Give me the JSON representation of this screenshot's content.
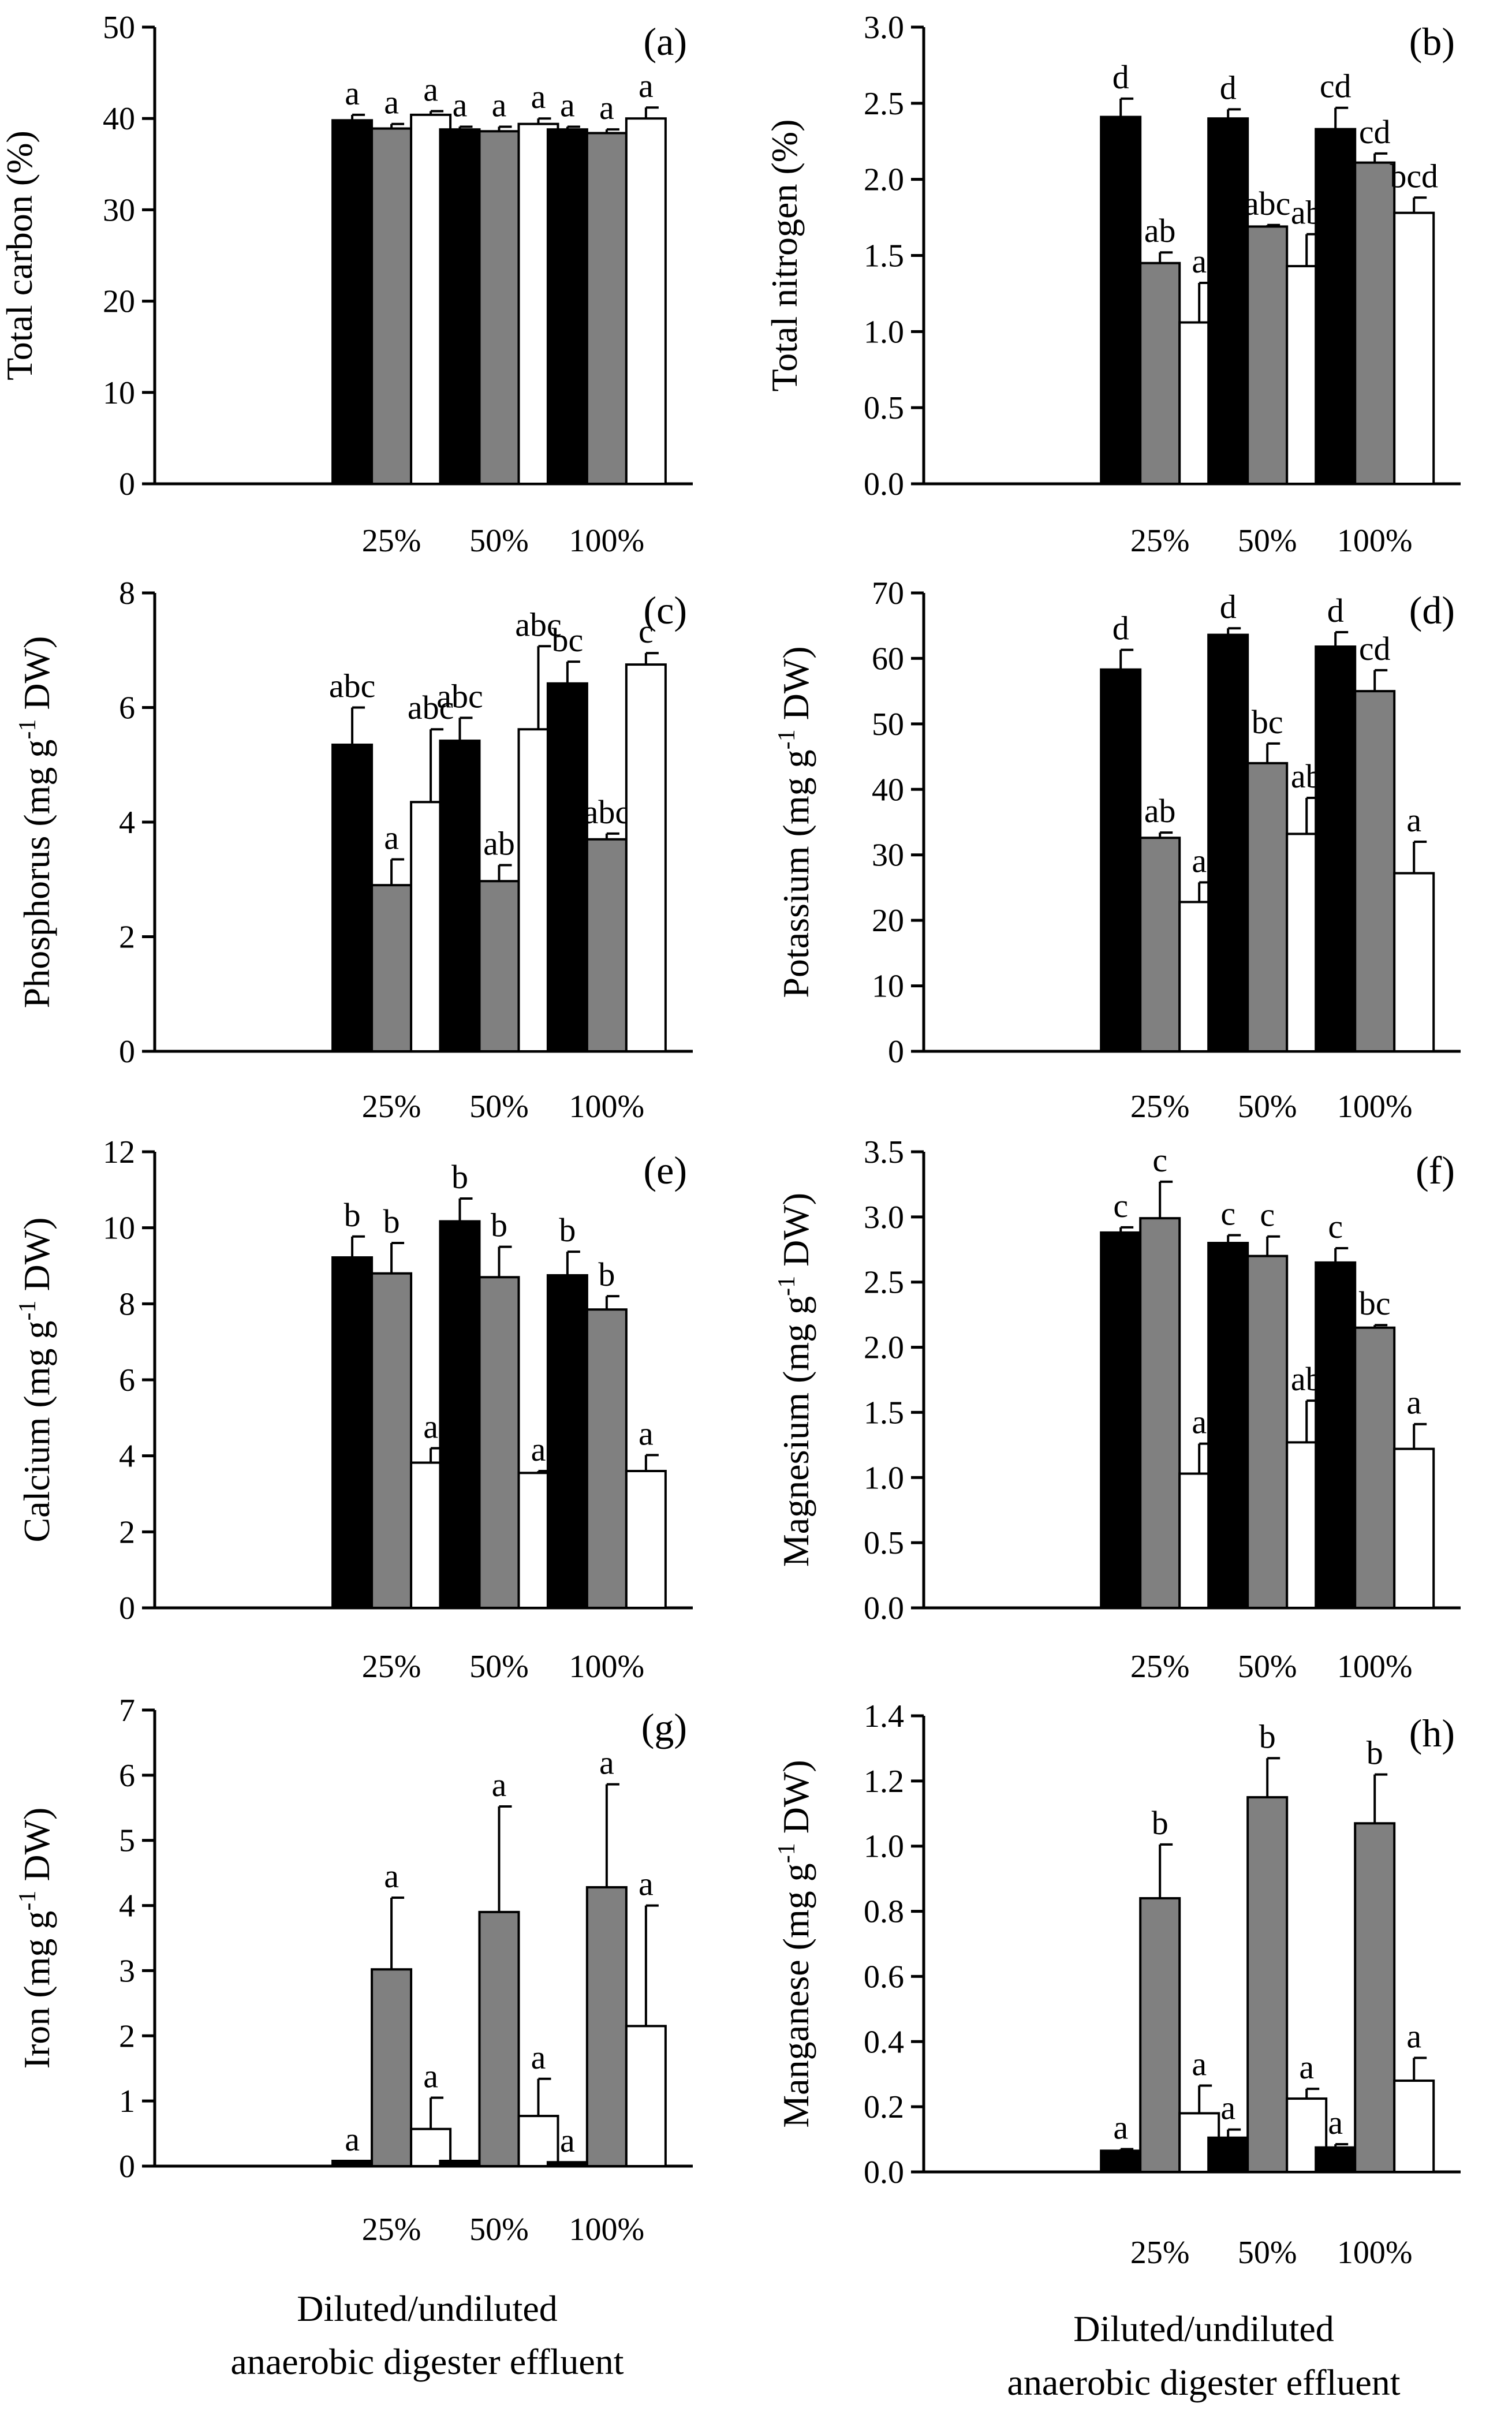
{
  "chart_data": [
    {
      "type": "bar",
      "panel": "(a)",
      "ylabel": "Total carbon (%)",
      "sup": "",
      "ylabel_after": "",
      "ylim": [
        0,
        50
      ],
      "yticks": [
        0,
        10,
        20,
        30,
        40,
        50
      ],
      "ytick_labels": [
        "0",
        "10",
        "20",
        "30",
        "40",
        "50"
      ],
      "categories": [
        "25%",
        "50%",
        "100%"
      ],
      "series": [
        {
          "color": "#000000",
          "values": [
            39.8,
            38.8,
            38.8
          ],
          "errors": [
            0.6,
            0.3,
            0.3
          ],
          "letters": [
            "a",
            "a",
            "a"
          ]
        },
        {
          "color": "#808080",
          "values": [
            38.9,
            38.6,
            38.4
          ],
          "errors": [
            0.5,
            0.5,
            0.4
          ],
          "letters": [
            "a",
            "a",
            "a"
          ]
        },
        {
          "color": "#ffffff",
          "values": [
            40.4,
            39.4,
            40.0
          ],
          "errors": [
            0.4,
            0.6,
            1.2
          ],
          "letters": [
            "a",
            "a",
            "a"
          ]
        }
      ]
    },
    {
      "type": "bar",
      "panel": "(b)",
      "ylabel": "Total nitrogen (%)",
      "sup": "",
      "ylabel_after": "",
      "ylim": [
        0,
        3.0
      ],
      "yticks": [
        0,
        0.5,
        1.0,
        1.5,
        2.0,
        2.5,
        3.0
      ],
      "ytick_labels": [
        "0.0",
        "0.5",
        "1.0",
        "1.5",
        "2.0",
        "2.5",
        "3.0"
      ],
      "categories": [
        "25%",
        "50%",
        "100%"
      ],
      "series": [
        {
          "color": "#000000",
          "values": [
            2.41,
            2.4,
            2.33
          ],
          "errors": [
            0.12,
            0.06,
            0.14
          ],
          "letters": [
            "d",
            "d",
            "cd"
          ]
        },
        {
          "color": "#808080",
          "values": [
            1.45,
            1.69,
            2.11
          ],
          "errors": [
            0.07,
            0.01,
            0.06
          ],
          "letters": [
            "ab",
            "abc",
            "cd"
          ]
        },
        {
          "color": "#ffffff",
          "values": [
            1.06,
            1.43,
            1.78
          ],
          "errors": [
            0.26,
            0.21,
            0.1
          ],
          "letters": [
            "a",
            "ab",
            "bcd"
          ]
        }
      ]
    },
    {
      "type": "bar",
      "panel": "(c)",
      "ylabel": "Phosphorus (mg g",
      "sup": "-1",
      "ylabel_after": " DW)",
      "ylim": [
        0,
        8
      ],
      "yticks": [
        0,
        2,
        4,
        6,
        8
      ],
      "ytick_labels": [
        "0",
        "2",
        "4",
        "6",
        "8"
      ],
      "categories": [
        "25%",
        "50%",
        "100%"
      ],
      "series": [
        {
          "color": "#000000",
          "values": [
            5.35,
            5.42,
            6.42
          ],
          "errors": [
            0.65,
            0.4,
            0.38
          ],
          "letters": [
            "abc",
            "abc",
            "bc"
          ]
        },
        {
          "color": "#808080",
          "values": [
            2.9,
            2.97,
            3.7
          ],
          "errors": [
            0.45,
            0.28,
            0.1
          ],
          "letters": [
            "a",
            "ab",
            "abc"
          ]
        },
        {
          "color": "#ffffff",
          "values": [
            4.35,
            5.62,
            6.75
          ],
          "errors": [
            1.27,
            1.45,
            0.2
          ],
          "letters": [
            "abc",
            "abc",
            "c"
          ]
        }
      ]
    },
    {
      "type": "bar",
      "panel": "(d)",
      "ylabel": "Potassium (mg g",
      "sup": "-1",
      "ylabel_after": " DW)",
      "ylim": [
        0,
        70
      ],
      "yticks": [
        0,
        10,
        20,
        30,
        40,
        50,
        60,
        70
      ],
      "ytick_labels": [
        "0",
        "10",
        "20",
        "30",
        "40",
        "50",
        "60",
        "70"
      ],
      "categories": [
        "25%",
        "50%",
        "100%"
      ],
      "series": [
        {
          "color": "#000000",
          "values": [
            58.3,
            63.6,
            61.8
          ],
          "errors": [
            3.0,
            1.0,
            2.2
          ],
          "letters": [
            "d",
            "d",
            "d"
          ]
        },
        {
          "color": "#808080",
          "values": [
            32.6,
            44.0,
            55.0
          ],
          "errors": [
            0.8,
            3.0,
            3.2
          ],
          "letters": [
            "ab",
            "bc",
            "cd"
          ]
        },
        {
          "color": "#ffffff",
          "values": [
            22.8,
            33.2,
            27.2
          ],
          "errors": [
            3.0,
            5.5,
            4.8
          ],
          "letters": [
            "a",
            "ab",
            "a"
          ]
        }
      ]
    },
    {
      "type": "bar",
      "panel": "(e)",
      "ylabel": "Calcium (mg g",
      "sup": "-1",
      "ylabel_after": " DW)",
      "ylim": [
        0,
        12
      ],
      "yticks": [
        0,
        2,
        4,
        6,
        8,
        10,
        12
      ],
      "ytick_labels": [
        "0",
        "2",
        "4",
        "6",
        "8",
        "10",
        "12"
      ],
      "categories": [
        "25%",
        "50%",
        "100%"
      ],
      "series": [
        {
          "color": "#000000",
          "values": [
            9.22,
            10.17,
            8.75
          ],
          "errors": [
            0.55,
            0.6,
            0.62
          ],
          "letters": [
            "b",
            "b",
            "b"
          ]
        },
        {
          "color": "#808080",
          "values": [
            8.8,
            8.7,
            7.85
          ],
          "errors": [
            0.8,
            0.8,
            0.35
          ],
          "letters": [
            "b",
            "b",
            "b"
          ]
        },
        {
          "color": "#ffffff",
          "values": [
            3.82,
            3.55,
            3.6
          ],
          "errors": [
            0.38,
            0.05,
            0.42
          ],
          "letters": [
            "a",
            "a",
            "a"
          ]
        }
      ]
    },
    {
      "type": "bar",
      "panel": "(f)",
      "ylabel": "Magnesium (mg g",
      "sup": "-1",
      "ylabel_after": " DW)",
      "ylim": [
        0,
        3.5
      ],
      "yticks": [
        0,
        0.5,
        1.0,
        1.5,
        2.0,
        2.5,
        3.0,
        3.5
      ],
      "ytick_labels": [
        "0.0",
        "0.5",
        "1.0",
        "1.5",
        "2.0",
        "2.5",
        "3.0",
        "3.5"
      ],
      "categories": [
        "25%",
        "50%",
        "100%"
      ],
      "series": [
        {
          "color": "#000000",
          "values": [
            2.88,
            2.8,
            2.65
          ],
          "errors": [
            0.04,
            0.06,
            0.11
          ],
          "letters": [
            "c",
            "c",
            "c"
          ]
        },
        {
          "color": "#808080",
          "values": [
            2.99,
            2.7,
            2.15
          ],
          "errors": [
            0.28,
            0.15,
            0.02
          ],
          "letters": [
            "c",
            "c",
            "bc"
          ]
        },
        {
          "color": "#ffffff",
          "values": [
            1.03,
            1.27,
            1.22
          ],
          "errors": [
            0.23,
            0.32,
            0.19
          ],
          "letters": [
            "a",
            "ab",
            "a"
          ]
        }
      ]
    },
    {
      "type": "bar",
      "panel": "(g)",
      "ylabel": "Iron (mg g",
      "sup": "-1",
      "ylabel_after": " DW)",
      "ylim": [
        0,
        7
      ],
      "yticks": [
        0,
        1,
        2,
        3,
        4,
        5,
        6,
        7
      ],
      "ytick_labels": [
        "0",
        "1",
        "2",
        "3",
        "4",
        "5",
        "6",
        "7"
      ],
      "categories": [
        "25%",
        "50%",
        "100%"
      ],
      "xlabel_line1": "Diluted/undiluted",
      "xlabel_line2": "anaerobic digester effluent",
      "series": [
        {
          "color": "#000000",
          "values": [
            0.08,
            0.08,
            0.06
          ],
          "errors": [
            0,
            0,
            0
          ],
          "letters": [
            "a",
            "",
            "a"
          ]
        },
        {
          "color": "#808080",
          "values": [
            3.02,
            3.9,
            4.28
          ],
          "errors": [
            1.1,
            1.62,
            1.58
          ],
          "letters": [
            "a",
            "a",
            "a"
          ]
        },
        {
          "color": "#ffffff",
          "values": [
            0.57,
            0.77,
            2.15
          ],
          "errors": [
            0.48,
            0.57,
            1.85
          ],
          "letters": [
            "a",
            "a",
            "a"
          ]
        }
      ]
    },
    {
      "type": "bar",
      "panel": "(h)",
      "ylabel": "Manganese (mg g",
      "sup": "-1",
      "ylabel_after": " DW)",
      "ylim": [
        0,
        1.4
      ],
      "yticks": [
        0,
        0.2,
        0.4,
        0.6,
        0.8,
        1.0,
        1.2,
        1.4
      ],
      "ytick_labels": [
        "0.0",
        "0.2",
        "0.4",
        "0.6",
        "0.8",
        "1.0",
        "1.2",
        "1.4"
      ],
      "categories": [
        "25%",
        "50%",
        "100%"
      ],
      "xlabel_line1": "Diluted/undiluted",
      "xlabel_line2": "anaerobic digester effluent",
      "series": [
        {
          "color": "#000000",
          "values": [
            0.065,
            0.105,
            0.075
          ],
          "errors": [
            0.005,
            0.025,
            0.01
          ],
          "letters": [
            "a",
            "a",
            "a"
          ]
        },
        {
          "color": "#808080",
          "values": [
            0.84,
            1.15,
            1.07
          ],
          "errors": [
            0.165,
            0.12,
            0.15
          ],
          "letters": [
            "b",
            "b",
            "b"
          ]
        },
        {
          "color": "#ffffff",
          "values": [
            0.18,
            0.225,
            0.28
          ],
          "errors": [
            0.085,
            0.03,
            0.07
          ],
          "letters": [
            "a",
            "a",
            "a"
          ]
        }
      ]
    }
  ]
}
